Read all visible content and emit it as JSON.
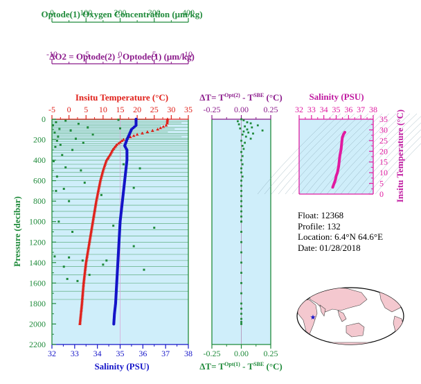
{
  "colors": {
    "oxygen": "#1f8a3a",
    "delta_o2": "#8b1a8b",
    "temperature": "#e0201a",
    "salinity": "#1414c8",
    "delta_t": "#1f8a3a",
    "ts": "#e01aa0",
    "panel_bg": "#cfeefa"
  },
  "info": {
    "float": "Float:  12368",
    "profile": "Profile:  132",
    "location": "Location:  6.4°N  64.6°E",
    "date": "Date:  01/28/2018"
  },
  "chart_data": [
    {
      "type": "line",
      "panel": "main",
      "ylabel": "Pressure (decibar)",
      "ylim": [
        2200,
        0
      ],
      "yticks": [
        "0",
        "200",
        "400",
        "600",
        "800",
        "1000",
        "1200",
        "1400",
        "1600",
        "1800",
        "2000",
        "2200"
      ],
      "axes": {
        "oxygen": {
          "label": "Optode(1) Oxygen Concentration (μm/kg)",
          "range": [
            0,
            400
          ],
          "ticks": [
            "0",
            "100",
            "200",
            "300",
            "400"
          ]
        },
        "delta_o2": {
          "label": "ΔO2 = Optode(2) - Optode(1)   (μm/kg)",
          "range": [
            -10,
            10
          ],
          "ticks": [
            "-10",
            "-5",
            "0",
            "5",
            "10"
          ]
        },
        "temperature": {
          "label": "Insitu Temperature (°C)",
          "range": [
            -5,
            35
          ],
          "ticks": [
            "-5",
            "0",
            "5",
            "10",
            "15",
            "20",
            "25",
            "30",
            "35"
          ]
        },
        "salinity": {
          "label": "Salinity (PSU)",
          "range": [
            32,
            38
          ],
          "ticks": [
            "32",
            "33",
            "34",
            "35",
            "36",
            "37",
            "38"
          ]
        }
      },
      "series": [
        {
          "key": "temperature",
          "x": [
            28.9,
            28.8,
            28.5,
            26.0,
            20.0,
            16.0,
            14.0,
            12.8,
            12.0,
            11.0,
            10.0,
            9.2,
            8.6,
            8.0,
            7.5,
            7.0,
            6.5,
            6.0,
            5.5,
            5.0,
            4.3,
            3.8,
            3.2
          ],
          "y": [
            0,
            40,
            60,
            100,
            150,
            200,
            250,
            300,
            350,
            400,
            500,
            600,
            700,
            800,
            900,
            1000,
            1100,
            1200,
            1300,
            1400,
            1600,
            1800,
            2000
          ]
        },
        {
          "key": "salinity",
          "x": [
            35.7,
            35.7,
            35.5,
            35.4,
            35.3,
            35.2,
            35.3,
            35.3,
            35.25,
            35.2,
            35.15,
            35.1,
            35.05,
            35.0,
            34.95,
            34.9,
            34.85,
            34.8,
            34.75,
            34.72
          ],
          "y": [
            0,
            60,
            100,
            150,
            200,
            260,
            300,
            400,
            500,
            600,
            700,
            800,
            900,
            1000,
            1200,
            1400,
            1600,
            1800,
            1900,
            2000
          ]
        },
        {
          "key": "oxygen",
          "x": [
            195,
            40,
            12,
            78,
            3,
            105,
            22,
            55,
            8,
            120,
            18,
            70,
            15,
            92,
            25,
            10,
            200,
            60,
            30,
            165,
            5,
            210,
            40,
            85,
            258,
            15,
            96,
            35,
            12,
            145,
            50,
            20,
            300,
            60,
            240,
            8,
            90,
            150,
            110,
            45,
            75,
            160,
            180,
            50,
            270,
            240,
            35
          ],
          "y": [
            5,
            15,
            30,
            45,
            60,
            80,
            95,
            110,
            130,
            150,
            170,
            190,
            210,
            230,
            250,
            270,
            90,
            300,
            350,
            380,
            410,
            440,
            470,
            500,
            480,
            560,
            620,
            680,
            700,
            740,
            800,
            1000,
            1060,
            1100,
            1240,
            1340,
            1380,
            1420,
            1520,
            1560,
            1580,
            1380,
            1040,
            1350,
            1470,
            670,
            1440
          ]
        },
        {
          "key": "delta_o2",
          "segments": [
            [
              -10,
              5,
              5,
              5
            ],
            [
              -10,
              20,
              10,
              20
            ],
            [
              -10,
              35,
              9,
              35
            ],
            [
              -10,
              50,
              10,
              50
            ],
            [
              -10,
              65,
              6,
              65
            ],
            [
              -10,
              80,
              10,
              80
            ],
            [
              -10,
              95,
              8,
              95
            ],
            [
              -10,
              110,
              10,
              110
            ],
            [
              -10,
              125,
              7,
              125
            ],
            [
              -10,
              140,
              10,
              140
            ],
            [
              -10,
              155,
              10,
              155
            ],
            [
              -10,
              170,
              9,
              170
            ],
            [
              -10,
              185,
              10,
              185
            ],
            [
              -10,
              200,
              10,
              200
            ],
            [
              -10,
              220,
              10,
              220
            ],
            [
              -10,
              240,
              10,
              240
            ],
            [
              -10,
              260,
              10,
              260
            ],
            [
              -10,
              280,
              10,
              280
            ],
            [
              -10,
              300,
              10,
              300
            ],
            [
              -10,
              330,
              10,
              330
            ],
            [
              -10,
              360,
              10,
              360
            ],
            [
              -10,
              400,
              10,
              400
            ],
            [
              -10,
              440,
              10,
              440
            ],
            [
              -10,
              480,
              10,
              480
            ],
            [
              -10,
              520,
              10,
              520
            ],
            [
              -10,
              560,
              10,
              560
            ],
            [
              -10,
              600,
              10,
              600
            ],
            [
              -10,
              660,
              10,
              660
            ],
            [
              -10,
              720,
              10,
              720
            ],
            [
              -10,
              780,
              10,
              780
            ],
            [
              -10,
              840,
              10,
              840
            ],
            [
              -10,
              900,
              10,
              900
            ],
            [
              -10,
              960,
              10,
              960
            ],
            [
              -10,
              1020,
              10,
              1020
            ],
            [
              -10,
              1080,
              10,
              1080
            ],
            [
              -10,
              1140,
              10,
              1140
            ],
            [
              -10,
              1200,
              10,
              1200
            ],
            [
              -10,
              1260,
              10,
              1260
            ],
            [
              -10,
              1320,
              10,
              1320
            ],
            [
              -10,
              1380,
              10,
              1380
            ],
            [
              -10,
              1440,
              10,
              1440
            ],
            [
              -10,
              1520,
              10,
              1520
            ],
            [
              -10,
              1600,
              10,
              1600
            ],
            [
              -10,
              1680,
              10,
              1680
            ],
            [
              -10,
              1760,
              10,
              1760
            ]
          ]
        }
      ]
    },
    {
      "type": "scatter",
      "panel": "delta_t",
      "top_axis": {
        "label": "ΔT= T^Opt(2) - T^SBE (°C)",
        "range": [
          -0.25,
          0.25
        ],
        "ticks": [
          "-0.25",
          "0.00",
          "0.25"
        ]
      },
      "bottom_axis": {
        "label": "ΔT= T^Opt(1) - T^SBE (°C)",
        "range": [
          -0.25,
          0.25
        ],
        "ticks": [
          "-0.25",
          "0.00",
          "0.25"
        ]
      },
      "ylim": [
        2200,
        0
      ],
      "x": [
        0.0,
        0.02,
        -0.03,
        0.05,
        0.08,
        -0.02,
        0.14,
        0.03,
        0.09,
        -0.01,
        0.05,
        0.18,
        0.02,
        0.06,
        0.1,
        0.01,
        0.04,
        0.08,
        0.0,
        0.03,
        0.01,
        0.02,
        0.0,
        0.01,
        0.0,
        0.01,
        0.0,
        0.0,
        0.01,
        0.0,
        0.0,
        0.0,
        0.0,
        0.0,
        0.0,
        0.0,
        0.0,
        0.0,
        0.0,
        0.0,
        0.0,
        0.0,
        0.0,
        0.0,
        0.0,
        0.0,
        0.0,
        0.0,
        0.0,
        0.0,
        0.0,
        0.0
      ],
      "y": [
        0,
        10,
        20,
        30,
        40,
        50,
        60,
        70,
        80,
        90,
        100,
        110,
        120,
        130,
        140,
        150,
        170,
        190,
        210,
        230,
        260,
        290,
        320,
        360,
        400,
        440,
        480,
        520,
        560,
        600,
        650,
        700,
        750,
        800,
        850,
        900,
        950,
        1000,
        1100,
        1200,
        1300,
        1400,
        1500,
        1600,
        1700,
        1800,
        1850,
        1900,
        1950,
        1980,
        2000,
        1000
      ]
    },
    {
      "type": "line",
      "panel": "ts_diagram",
      "top_axis": {
        "label": "Salinity (PSU)",
        "range": [
          32,
          38
        ],
        "ticks": [
          "32",
          "33",
          "34",
          "35",
          "36",
          "37",
          "38"
        ]
      },
      "right_axis": {
        "label": "Insitu Temperature (°C)",
        "range": [
          0,
          35
        ],
        "ticks": [
          "0",
          "5",
          "10",
          "15",
          "20",
          "25",
          "30",
          "35"
        ]
      },
      "x": [
        35.7,
        35.6,
        35.5,
        35.45,
        35.4,
        35.3,
        35.25,
        35.2,
        35.15,
        35.1,
        35.0,
        34.95,
        34.9,
        34.8,
        34.72
      ],
      "y": [
        28.9,
        28.0,
        26.5,
        24.0,
        21.0,
        18.0,
        15.5,
        13.0,
        11.5,
        10.0,
        8.5,
        7.0,
        6.0,
        4.5,
        3.2
      ]
    }
  ]
}
